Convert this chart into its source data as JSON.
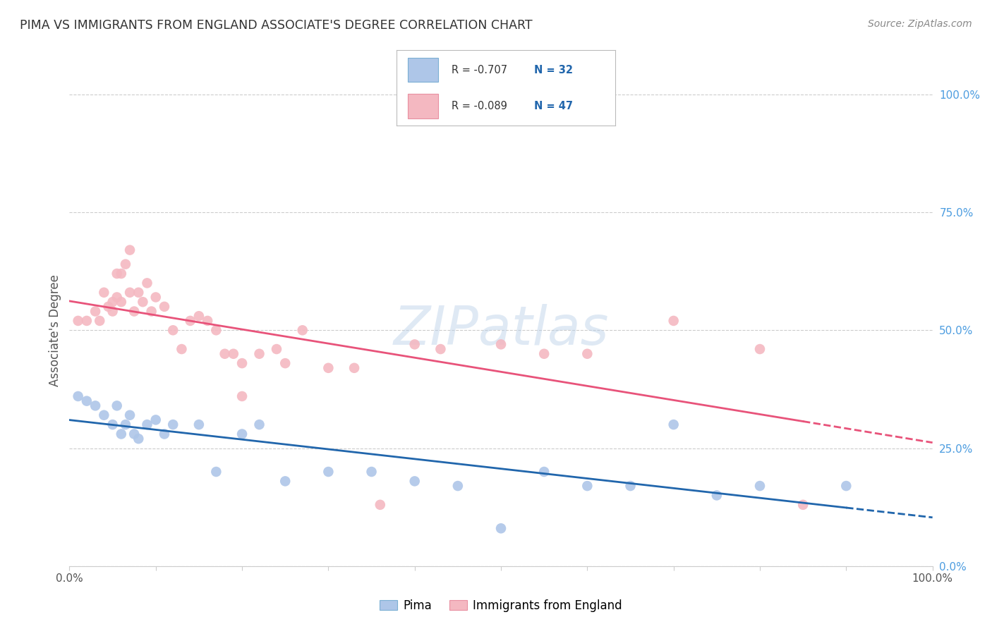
{
  "title": "PIMA VS IMMIGRANTS FROM ENGLAND ASSOCIATE'S DEGREE CORRELATION CHART",
  "source": "Source: ZipAtlas.com",
  "ylabel": "Associate's Degree",
  "ytick_values": [
    0.0,
    25.0,
    50.0,
    75.0,
    100.0
  ],
  "legend_entries": [
    {
      "label": "Pima",
      "color": "#aec6e8",
      "border": "#7bafd4",
      "R": "-0.707",
      "N": "32"
    },
    {
      "label": "Immigrants from England",
      "color": "#f4b8c1",
      "border": "#e88fa0",
      "R": "-0.089",
      "N": "47"
    }
  ],
  "pima_scatter_x": [
    1.0,
    2.0,
    3.0,
    4.0,
    5.0,
    5.5,
    6.0,
    6.5,
    7.0,
    7.5,
    8.0,
    9.0,
    10.0,
    11.0,
    12.0,
    15.0,
    17.0,
    20.0,
    22.0,
    25.0,
    30.0,
    35.0,
    40.0,
    45.0,
    50.0,
    55.0,
    60.0,
    65.0,
    70.0,
    75.0,
    80.0,
    90.0
  ],
  "pima_scatter_y": [
    36.0,
    35.0,
    34.0,
    32.0,
    30.0,
    34.0,
    28.0,
    30.0,
    32.0,
    28.0,
    27.0,
    30.0,
    31.0,
    28.0,
    30.0,
    30.0,
    20.0,
    28.0,
    30.0,
    18.0,
    20.0,
    20.0,
    18.0,
    17.0,
    8.0,
    20.0,
    17.0,
    17.0,
    30.0,
    15.0,
    17.0,
    17.0
  ],
  "england_scatter_x": [
    1.0,
    2.0,
    3.0,
    3.5,
    4.0,
    4.5,
    5.0,
    5.0,
    5.5,
    5.5,
    6.0,
    6.0,
    6.5,
    7.0,
    7.0,
    7.5,
    8.0,
    8.5,
    9.0,
    9.5,
    10.0,
    11.0,
    12.0,
    13.0,
    14.0,
    15.0,
    16.0,
    17.0,
    18.0,
    19.0,
    20.0,
    20.0,
    22.0,
    24.0,
    25.0,
    27.0,
    30.0,
    33.0,
    36.0,
    40.0,
    43.0,
    50.0,
    55.0,
    60.0,
    70.0,
    80.0,
    85.0
  ],
  "england_scatter_y": [
    52.0,
    52.0,
    54.0,
    52.0,
    58.0,
    55.0,
    54.0,
    56.0,
    57.0,
    62.0,
    56.0,
    62.0,
    64.0,
    67.0,
    58.0,
    54.0,
    58.0,
    56.0,
    60.0,
    54.0,
    57.0,
    55.0,
    50.0,
    46.0,
    52.0,
    53.0,
    52.0,
    50.0,
    45.0,
    45.0,
    43.0,
    36.0,
    45.0,
    46.0,
    43.0,
    50.0,
    42.0,
    42.0,
    13.0,
    47.0,
    46.0,
    47.0,
    45.0,
    45.0,
    52.0,
    46.0,
    13.0
  ],
  "pima_color": "#aec6e8",
  "england_color": "#f4b8c1",
  "pima_line_color": "#2166ac",
  "england_line_color": "#e8537a",
  "background_color": "#ffffff",
  "grid_color": "#cccccc",
  "watermark": "ZIPatlas",
  "xmin": 0.0,
  "xmax": 100.0,
  "ymin": 0.0,
  "ymax": 100.0
}
